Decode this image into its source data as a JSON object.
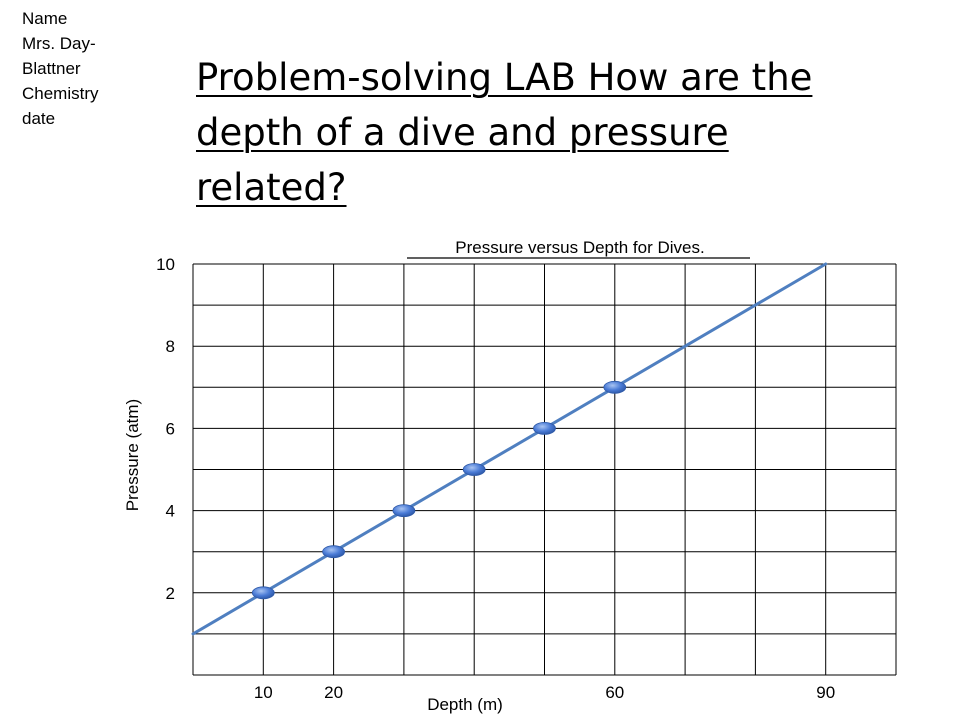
{
  "header_lines": [
    "Name",
    "Mrs. Day-",
    "Blattner",
    "Chemistry",
    "date"
  ],
  "title_lines": [
    "Problem-solving LAB How are the",
    "depth of a dive and pressure",
    "related?"
  ],
  "chart_data": {
    "type": "line",
    "title": "Pressure versus Depth for Dives.",
    "xlabel": "Depth (m)",
    "ylabel": "Pressure (atm)",
    "xlim": [
      0,
      100
    ],
    "ylim": [
      0,
      10
    ],
    "x_tick_labels": [
      {
        "label": "10",
        "value": 10
      },
      {
        "label": "20",
        "value": 20
      },
      {
        "label": "60",
        "value": 60
      },
      {
        "label": "90",
        "value": 90
      }
    ],
    "y_tick_labels": [
      {
        "label": "2",
        "value": 2
      },
      {
        "label": "4",
        "value": 4
      },
      {
        "label": "6",
        "value": 6
      },
      {
        "label": "8",
        "value": 8
      },
      {
        "label": "10",
        "value": 10
      }
    ],
    "grid": true,
    "series": [
      {
        "points": [
          {
            "x": 10,
            "y": 2
          },
          {
            "x": 20,
            "y": 3
          },
          {
            "x": 30,
            "y": 4
          },
          {
            "x": 40,
            "y": 5
          },
          {
            "x": 50,
            "y": 6
          },
          {
            "x": 60,
            "y": 7
          }
        ],
        "trendline": {
          "x_from": 0,
          "y_from": 1,
          "x_to": 90,
          "y_to": 10
        }
      }
    ],
    "colors": {
      "line": "#4f7fc0",
      "marker": "#4a7bd6",
      "grid": "#000000"
    }
  }
}
